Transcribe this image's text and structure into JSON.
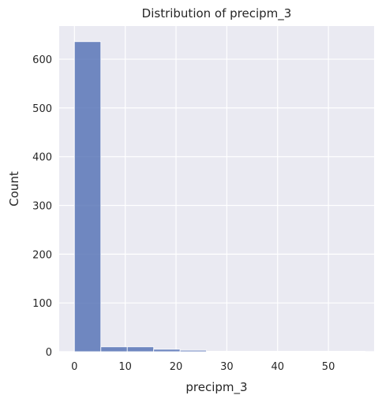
{
  "chart_data": {
    "type": "bar",
    "title": "Distribution of precipm_3",
    "xlabel": "precipm_3",
    "ylabel": "Count",
    "bins": [
      {
        "x0": 0,
        "x1": 5.2,
        "count": 636
      },
      {
        "x0": 5.2,
        "x1": 10.4,
        "count": 10
      },
      {
        "x0": 10.4,
        "x1": 15.6,
        "count": 10
      },
      {
        "x0": 15.6,
        "x1": 20.8,
        "count": 5
      },
      {
        "x0": 20.8,
        "x1": 26.0,
        "count": 3
      },
      {
        "x0": 26.0,
        "x1": 31.2,
        "count": 1
      },
      {
        "x0": 31.2,
        "x1": 36.4,
        "count": 1
      },
      {
        "x0": 36.4,
        "x1": 41.6,
        "count": 1
      },
      {
        "x0": 41.6,
        "x1": 46.8,
        "count": 1
      },
      {
        "x0": 46.8,
        "x1": 52.0,
        "count": 1
      },
      {
        "x0": 52.0,
        "x1": 57.2,
        "count": 1
      }
    ],
    "xlim": [
      -3,
      59
    ],
    "ylim": [
      0,
      668
    ],
    "xticks": [
      "0",
      "10",
      "20",
      "30",
      "40",
      "50"
    ],
    "yticks": [
      "0",
      "100",
      "200",
      "300",
      "400",
      "500",
      "600"
    ],
    "grid": true,
    "colors": {
      "background": "#eaeaf2",
      "grid": "#ffffff",
      "bar": "#5975b7",
      "bar_edge": "#ffffff",
      "text": "#262626"
    }
  }
}
